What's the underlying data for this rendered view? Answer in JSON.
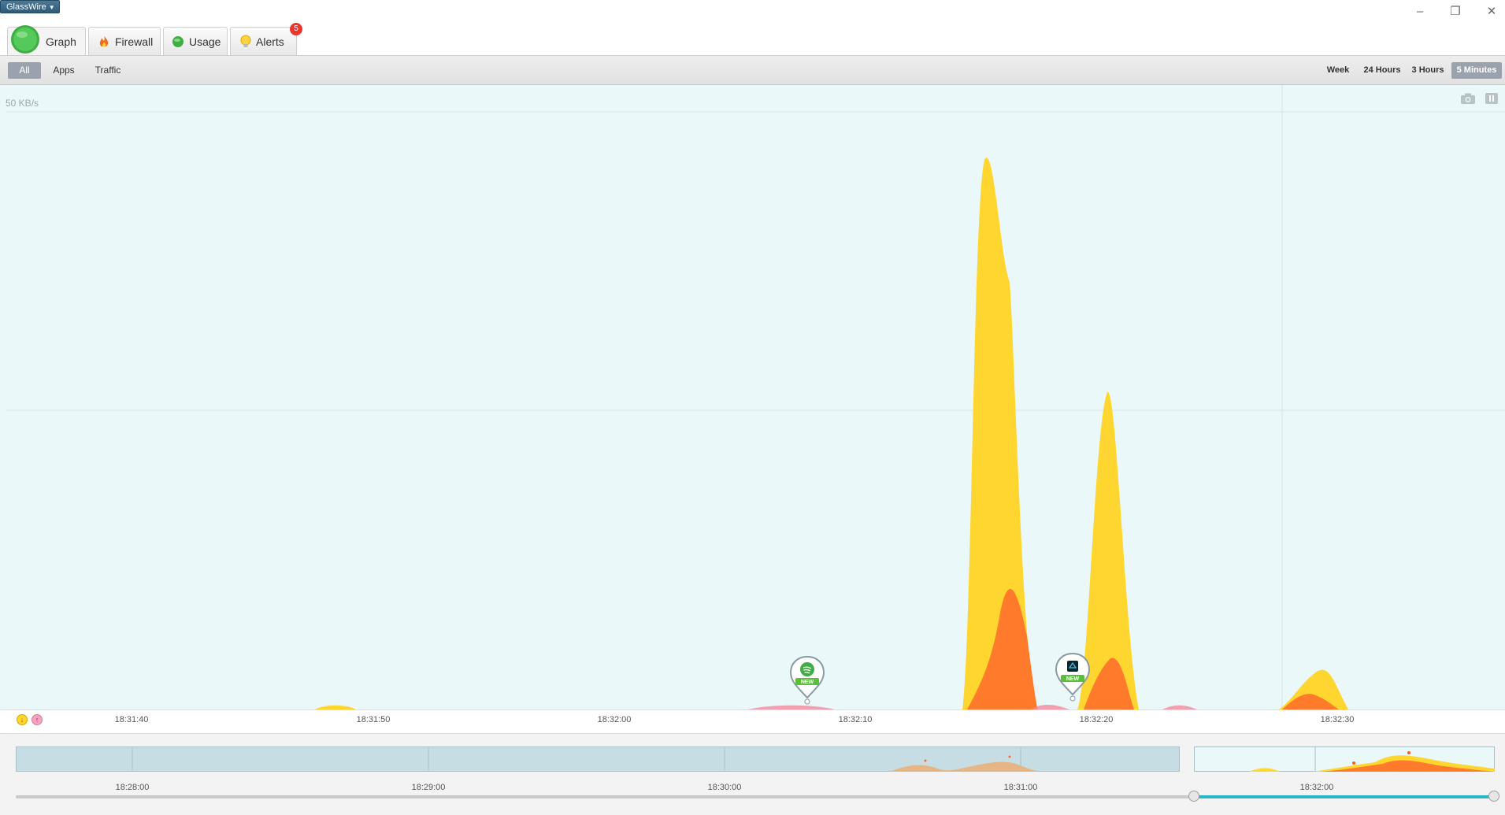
{
  "app": {
    "menu_label": "GlassWire"
  },
  "window_controls": {
    "minimize": "–",
    "restore": "❐",
    "close": "✕"
  },
  "tabs": [
    {
      "id": "graph",
      "label": "Graph",
      "icon": "glasswire-globe-icon"
    },
    {
      "id": "firewall",
      "label": "Firewall",
      "icon": "flame-icon"
    },
    {
      "id": "usage",
      "label": "Usage",
      "icon": "usage-globe-icon"
    },
    {
      "id": "alerts",
      "label": "Alerts",
      "icon": "lightbulb-icon",
      "badge": "5"
    }
  ],
  "filters": {
    "all": "All",
    "apps": "Apps",
    "traffic": "Traffic",
    "selected": "All"
  },
  "ranges": {
    "week": "Week",
    "h24": "24 Hours",
    "h3": "3 Hours",
    "m5": "5 Minutes",
    "selected": "5 Minutes"
  },
  "graph": {
    "y_max_label": "50 KB/s",
    "tools": [
      "camera-icon",
      "pause-icon"
    ],
    "time_ticks": [
      "18:31:40",
      "18:31:50",
      "18:32:00",
      "18:32:10",
      "18:32:20",
      "18:32:30"
    ],
    "legend": {
      "download": "↓",
      "upload": "↑"
    },
    "app_pins": [
      {
        "app": "Spotify",
        "badge": "NEW"
      },
      {
        "app": "Unknown app",
        "badge": "NEW"
      }
    ],
    "colors": {
      "download": "#ffd630",
      "upload": "#ff7a2a",
      "secondary": "#f28aa0",
      "background": "#ebf8fa"
    }
  },
  "overview": {
    "time_ticks": [
      "18:28:00",
      "18:29:00",
      "18:30:00",
      "18:31:00",
      "18:32:00"
    ]
  }
}
